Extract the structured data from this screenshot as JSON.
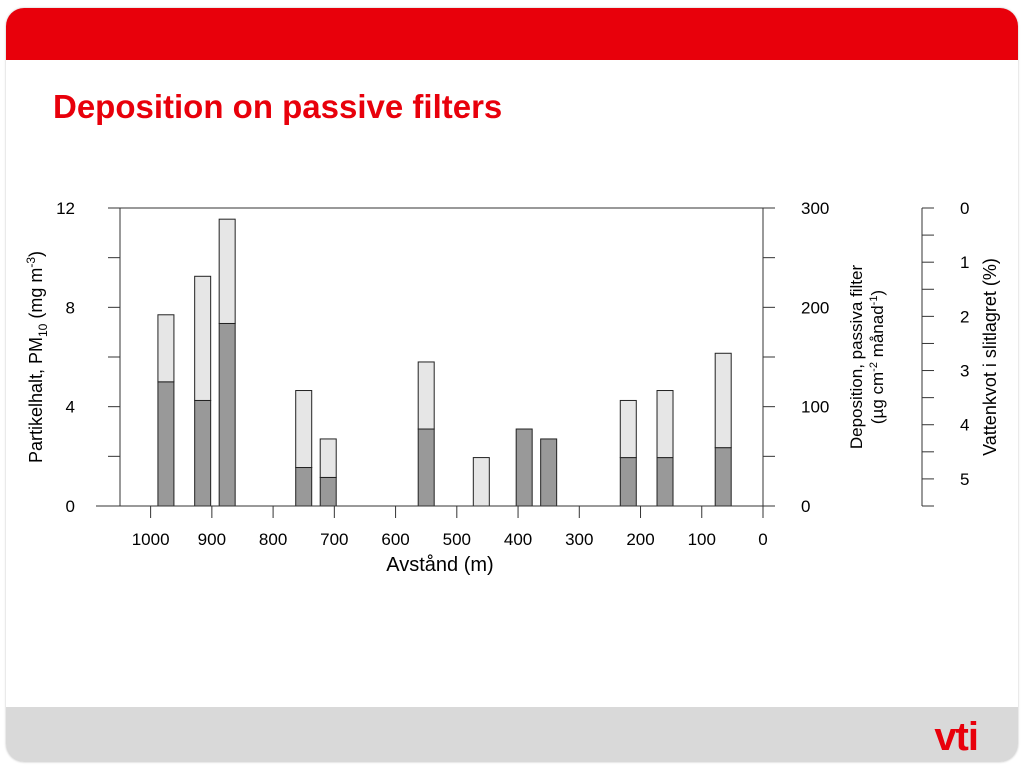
{
  "slide": {
    "title": "Deposition on passive filters",
    "logo_text": "vti",
    "colors": {
      "accent": "#e8000b",
      "footer": "#d9d9d9"
    }
  },
  "chart_data": {
    "type": "bar",
    "stacked": true,
    "xlabel": "Avstånd (m)",
    "xlim": [
      1050,
      0
    ],
    "xticks": [
      1000,
      900,
      800,
      700,
      600,
      500,
      400,
      300,
      200,
      100,
      0
    ],
    "left_axis": {
      "label": "Partikelhalt, PM",
      "label_sub": "10",
      "label_mid": " (mg m",
      "label_sup": "-3",
      "label_end": ")",
      "ylim": [
        0,
        12
      ],
      "ticks": [
        0,
        4,
        8,
        12
      ]
    },
    "right_axis": {
      "label_line1": "Deposition, passiva filter",
      "label_line2_a": "(µg cm",
      "label_line2_sup1": "-2",
      "label_line2_b": " månad",
      "label_line2_sup2": "-1",
      "label_line2_c": ")",
      "ylim": [
        0,
        300
      ],
      "ticks": [
        0,
        100,
        200,
        300
      ]
    },
    "far_right_axis": {
      "label": "Vattenkvot i slitlagret (%)",
      "range": [
        0,
        5.5
      ],
      "inverted": true,
      "ticks": [
        0,
        1,
        2,
        3,
        4,
        5
      ]
    },
    "bars": [
      {
        "x": 975,
        "lower": 5.0,
        "total": 7.7
      },
      {
        "x": 915,
        "lower": 4.25,
        "total": 9.25
      },
      {
        "x": 875,
        "lower": 7.35,
        "total": 11.55
      },
      {
        "x": 750,
        "lower": 1.55,
        "total": 4.65
      },
      {
        "x": 710,
        "lower": 1.15,
        "total": 2.7
      },
      {
        "x": 550,
        "lower": 3.1,
        "total": 5.8
      },
      {
        "x": 460,
        "lower": 0,
        "total": 1.95
      },
      {
        "x": 390,
        "lower": 3.1,
        "total": 3.1
      },
      {
        "x": 350,
        "lower": 2.7,
        "total": 2.7
      },
      {
        "x": 220,
        "lower": 1.95,
        "total": 4.25
      },
      {
        "x": 160,
        "lower": 1.95,
        "total": 4.65
      },
      {
        "x": 65,
        "lower": 2.35,
        "total": 6.15
      }
    ],
    "series_colors": {
      "lower": "#999999",
      "upper": "#e6e6e6"
    }
  }
}
